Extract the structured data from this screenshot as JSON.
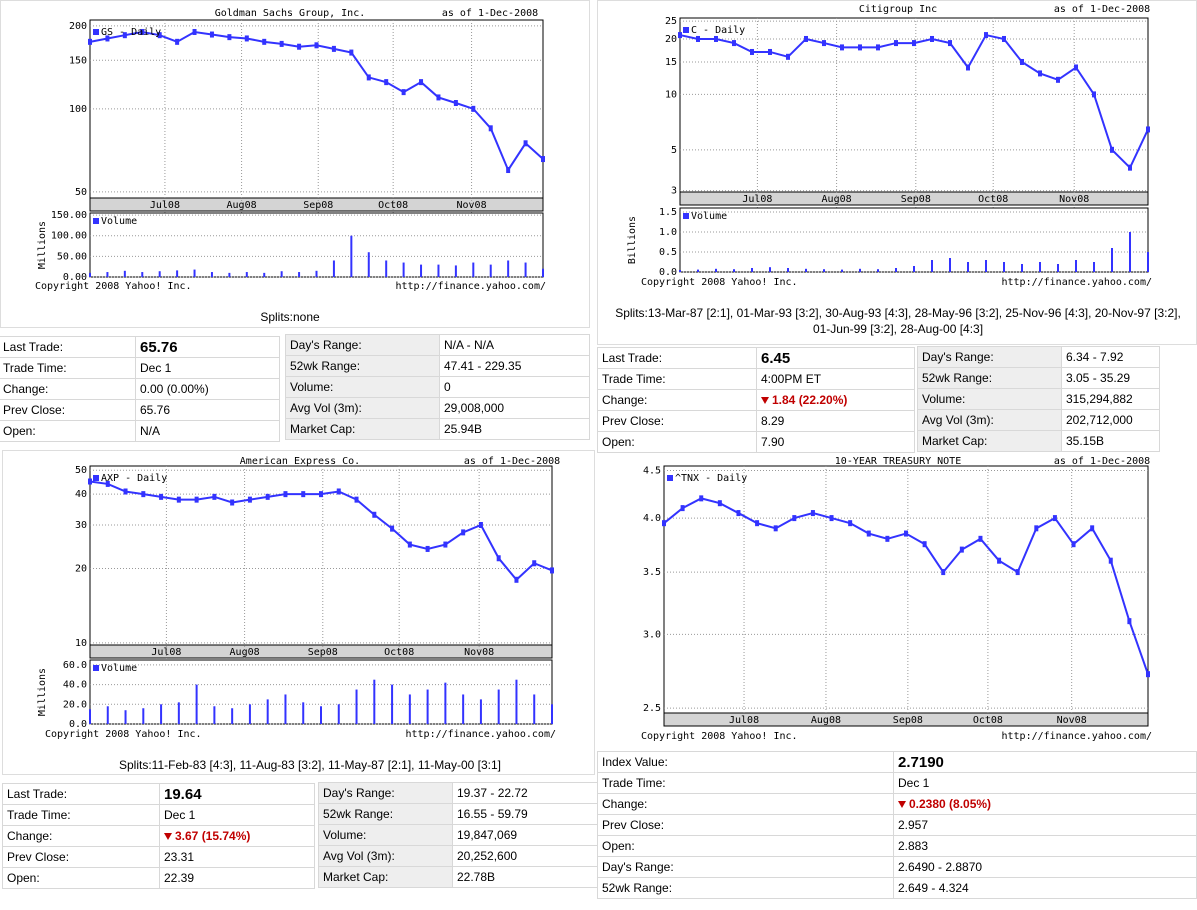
{
  "panels": [
    {
      "chart": {
        "type": "line",
        "title": "Goldman Sachs Group, Inc.",
        "as_of": "as of  1-Dec-2008",
        "legend": "GS - Daily",
        "log_scale": true,
        "color": "#3333ff",
        "grid": true,
        "values": [
          175,
          180,
          185,
          190,
          185,
          175,
          190,
          186,
          182,
          180,
          175,
          172,
          168,
          170,
          165,
          160,
          130,
          125,
          115,
          125,
          110,
          105,
          100,
          85,
          60,
          75,
          65.76
        ],
        "xlim": [
          0,
          26
        ],
        "xticks": [
          {
            "value": 4.3,
            "label": "Jul08"
          },
          {
            "value": 8.7,
            "label": "Aug08"
          },
          {
            "value": 13.1,
            "label": "Sep08"
          },
          {
            "value": 17.4,
            "label": "Oct08"
          },
          {
            "value": 21.9,
            "label": "Nov08"
          }
        ],
        "ylim": [
          47.5,
          210
        ],
        "yticks": [
          50,
          100,
          150,
          200
        ]
      },
      "volume": {
        "type": "bar",
        "legend": "Volume",
        "ylabel": "Millions",
        "color": "#3333ff",
        "values": [
          10,
          12,
          15,
          12,
          14,
          16,
          18,
          12,
          10,
          12,
          10,
          14,
          12,
          15,
          40,
          100,
          60,
          40,
          35,
          30,
          30,
          28,
          35,
          30,
          40,
          35,
          20
        ],
        "ylim": [
          0,
          155
        ],
        "yticks": [
          {
            "value": 0,
            "label": "0.00"
          },
          {
            "value": 50,
            "label": "50.00"
          },
          {
            "value": 100,
            "label": "100.00"
          },
          {
            "value": 150,
            "label": "150.00"
          }
        ]
      },
      "copyright": "Copyright 2008 Yahoo! Inc.",
      "url": "http://finance.yahoo.com/",
      "splits": [
        "Splits:none"
      ],
      "quote": {
        "change_direction": "none",
        "left": [
          {
            "label": "Last Trade:",
            "value": "65.76"
          },
          {
            "label": "Trade Time:",
            "value": "Dec 1"
          },
          {
            "label": "Change:",
            "value": "0.00 (0.00%)"
          },
          {
            "label": "Prev Close:",
            "value": "65.76"
          },
          {
            "label": "Open:",
            "value": "N/A"
          }
        ],
        "right": [
          {
            "label": "Day's Range:",
            "value": "N/A - N/A"
          },
          {
            "label": "52wk Range:",
            "value": "47.41 - 229.35"
          },
          {
            "label": "Volume:",
            "value": "0"
          },
          {
            "label": "Avg Vol (3m):",
            "value": "29,008,000"
          },
          {
            "label": "Market Cap:",
            "value": "25.94B"
          }
        ]
      }
    },
    {
      "chart": {
        "type": "line",
        "title": "Citigroup Inc",
        "as_of": "as of  1-Dec-2008",
        "legend": "C - Daily",
        "log_scale": true,
        "color": "#3333ff",
        "grid": true,
        "values": [
          21,
          20,
          20,
          19,
          17,
          17,
          16,
          20,
          19,
          18,
          18,
          18,
          19,
          19,
          20,
          19,
          14,
          21,
          20,
          15,
          13,
          12,
          14,
          10,
          5,
          4,
          6.45
        ],
        "xlim": [
          0,
          26
        ],
        "xticks": [
          {
            "value": 4.3,
            "label": "Jul08"
          },
          {
            "value": 8.7,
            "label": "Aug08"
          },
          {
            "value": 13.1,
            "label": "Sep08"
          },
          {
            "value": 17.4,
            "label": "Oct08"
          },
          {
            "value": 21.9,
            "label": "Nov08"
          }
        ],
        "ylim": [
          2.95,
          26
        ],
        "yticks": [
          3,
          5,
          10,
          15,
          20,
          25
        ]
      },
      "volume": {
        "type": "bar",
        "legend": "Volume",
        "ylabel": "Billions",
        "color": "#3333ff",
        "values": [
          0.05,
          0.06,
          0.08,
          0.07,
          0.1,
          0.12,
          0.1,
          0.08,
          0.07,
          0.06,
          0.08,
          0.07,
          0.1,
          0.15,
          0.3,
          0.35,
          0.25,
          0.3,
          0.25,
          0.2,
          0.25,
          0.2,
          0.3,
          0.25,
          0.6,
          1.0,
          0.5
        ],
        "ylim": [
          0,
          1.6
        ],
        "yticks": [
          {
            "value": 0,
            "label": "0.0"
          },
          {
            "value": 0.5,
            "label": "0.5"
          },
          {
            "value": 1,
            "label": "1.0"
          },
          {
            "value": 1.5,
            "label": "1.5"
          }
        ]
      },
      "copyright": "Copyright 2008 Yahoo! Inc.",
      "url": "http://finance.yahoo.com/",
      "splits": [
        "Splits:13-Mar-87 [2:1], 01-Mar-93 [3:2], 30-Aug-93 [4:3], 28-May-96 [3:2], 25-Nov-96 [4:3], 20-Nov-97 [3:2],",
        "01-Jun-99 [3:2], 28-Aug-00 [4:3]"
      ],
      "quote": {
        "change_direction": "down",
        "left": [
          {
            "label": "Last Trade:",
            "value": "6.45"
          },
          {
            "label": "Trade Time:",
            "value": "4:00PM ET"
          },
          {
            "label": "Change:",
            "value": "1.84 (22.20%)"
          },
          {
            "label": "Prev Close:",
            "value": "8.29"
          },
          {
            "label": "Open:",
            "value": "7.90"
          }
        ],
        "right": [
          {
            "label": "Day's Range:",
            "value": "6.34 - 7.92"
          },
          {
            "label": "52wk Range:",
            "value": "3.05 - 35.29"
          },
          {
            "label": "Volume:",
            "value": "315,294,882"
          },
          {
            "label": "Avg Vol (3m):",
            "value": "202,712,000"
          },
          {
            "label": "Market Cap:",
            "value": "35.15B"
          }
        ]
      }
    },
    {
      "chart": {
        "type": "line",
        "title": "American Express Co.",
        "as_of": "as of  1-Dec-2008",
        "legend": "AXP - Daily",
        "log_scale": true,
        "color": "#3333ff",
        "grid": true,
        "values": [
          45,
          44,
          41,
          40,
          39,
          38,
          38,
          39,
          37,
          38,
          39,
          40,
          40,
          40,
          41,
          38,
          33,
          29,
          25,
          24,
          25,
          28,
          30,
          22,
          18,
          21,
          19.64
        ],
        "xlim": [
          0,
          26
        ],
        "xticks": [
          {
            "value": 4.3,
            "label": "Jul08"
          },
          {
            "value": 8.7,
            "label": "Aug08"
          },
          {
            "value": 13.1,
            "label": "Sep08"
          },
          {
            "value": 17.4,
            "label": "Oct08"
          },
          {
            "value": 21.9,
            "label": "Nov08"
          }
        ],
        "ylim": [
          9.8,
          52
        ],
        "yticks": [
          10,
          20,
          30,
          40,
          50
        ]
      },
      "volume": {
        "type": "bar",
        "legend": "Volume",
        "ylabel": "Millions",
        "color": "#3333ff",
        "values": [
          15,
          18,
          14,
          16,
          20,
          22,
          40,
          18,
          16,
          20,
          25,
          30,
          22,
          18,
          20,
          35,
          45,
          40,
          30,
          35,
          42,
          30,
          25,
          35,
          45,
          30,
          20
        ],
        "ylim": [
          0,
          65
        ],
        "yticks": [
          {
            "value": 0,
            "label": "0.0"
          },
          {
            "value": 20,
            "label": "20.0"
          },
          {
            "value": 40,
            "label": "40.0"
          },
          {
            "value": 60,
            "label": "60.0"
          }
        ]
      },
      "copyright": "Copyright 2008 Yahoo! Inc.",
      "url": "http://finance.yahoo.com/",
      "splits": [
        "Splits:11-Feb-83 [4:3], 11-Aug-83 [3:2], 11-May-87 [2:1], 11-May-00 [3:1]"
      ],
      "quote": {
        "change_direction": "down",
        "left": [
          {
            "label": "Last Trade:",
            "value": "19.64"
          },
          {
            "label": "Trade Time:",
            "value": "Dec 1"
          },
          {
            "label": "Change:",
            "value": "3.67 (15.74%)"
          },
          {
            "label": "Prev Close:",
            "value": "23.31"
          },
          {
            "label": "Open:",
            "value": "22.39"
          }
        ],
        "right": [
          {
            "label": "Day's Range:",
            "value": "19.37 - 22.72"
          },
          {
            "label": "52wk Range:",
            "value": "16.55 - 59.79"
          },
          {
            "label": "Volume:",
            "value": "19,847,069"
          },
          {
            "label": "Avg Vol (3m):",
            "value": "20,252,600"
          },
          {
            "label": "Market Cap:",
            "value": "22.78B"
          }
        ]
      }
    },
    {
      "chart": {
        "type": "line",
        "title": "10-YEAR TREASURY NOTE",
        "as_of": "as of  1-Dec-2008",
        "legend": "^TNX - Daily",
        "log_scale": true,
        "color": "#3333ff",
        "grid": true,
        "values": [
          3.95,
          4.1,
          4.2,
          4.15,
          4.05,
          3.95,
          3.9,
          4.0,
          4.05,
          4.0,
          3.95,
          3.85,
          3.8,
          3.85,
          3.75,
          3.5,
          3.7,
          3.8,
          3.6,
          3.5,
          3.9,
          4.0,
          3.75,
          3.9,
          3.6,
          3.1,
          2.719
        ],
        "xlim": [
          0,
          26
        ],
        "xticks": [
          {
            "value": 4.3,
            "label": "Jul08"
          },
          {
            "value": 8.7,
            "label": "Aug08"
          },
          {
            "value": 13.1,
            "label": "Sep08"
          },
          {
            "value": 17.4,
            "label": "Oct08"
          },
          {
            "value": 21.9,
            "label": "Nov08"
          }
        ],
        "ylim": [
          2.47,
          4.55
        ],
        "yticks": [
          2.5,
          {
            "value": 3,
            "label": "3.0"
          },
          3.5,
          {
            "value": 4,
            "label": "4.0"
          },
          4.5
        ]
      },
      "copyright": "Copyright 2008 Yahoo! Inc.",
      "url": "http://finance.yahoo.com/",
      "quote": {
        "change_direction": "down",
        "left": [
          {
            "label": "Index Value:",
            "value": "2.7190"
          },
          {
            "label": "Trade Time:",
            "value": "Dec 1"
          },
          {
            "label": "Change:",
            "value": "0.2380 (8.05%)"
          },
          {
            "label": "Prev Close:",
            "value": "2.957"
          },
          {
            "label": "Open:",
            "value": "2.883"
          },
          {
            "label": "Day's Range:",
            "value": "2.6490 - 2.8870"
          },
          {
            "label": "52wk Range:",
            "value": "2.649 - 4.324"
          }
        ]
      }
    }
  ]
}
